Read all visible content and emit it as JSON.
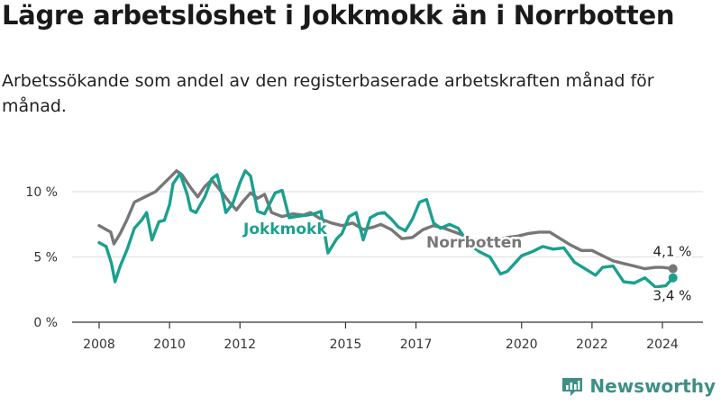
{
  "title": "Lägre arbetslöshet i Jokkmokk än i Norrbotten",
  "subtitle": "Arbetssökande som andel av den registerbaserade arbetskraften månad för månad.",
  "brand": {
    "name": "Newsworthy",
    "icon": "newsworthy-logo-icon",
    "color": "#3e8f86"
  },
  "chart_data": {
    "type": "line",
    "x_unit": "year",
    "xlim": [
      2007.4,
      2024.8
    ],
    "ylim": [
      0,
      12
    ],
    "y_ticks": [
      {
        "value": 0,
        "label": "0 %"
      },
      {
        "value": 5,
        "label": "5 %"
      },
      {
        "value": 10,
        "label": "10 %"
      }
    ],
    "x_ticks": [
      {
        "value": 2008,
        "label": "2008"
      },
      {
        "value": 2010,
        "label": "2010"
      },
      {
        "value": 2012,
        "label": "2012"
      },
      {
        "value": 2015,
        "label": "2015"
      },
      {
        "value": 2017,
        "label": "2017"
      },
      {
        "value": 2020,
        "label": "2020"
      },
      {
        "value": 2022,
        "label": "2022"
      },
      {
        "value": 2024,
        "label": "2024"
      }
    ],
    "grid": true,
    "series": [
      {
        "name": "Norrbotten",
        "label": "Norrbotten",
        "color": "#777777",
        "end_label": "4,1 %",
        "x": [
          2008.0,
          2008.33,
          2008.42,
          2008.6,
          2008.8,
          2009.0,
          2009.3,
          2009.6,
          2009.9,
          2010.2,
          2010.35,
          2010.6,
          2010.8,
          2011.0,
          2011.2,
          2011.5,
          2011.7,
          2011.9,
          2012.1,
          2012.3,
          2012.5,
          2012.7,
          2012.9,
          2013.2,
          2013.5,
          2013.8,
          2014.0,
          2014.3,
          2014.6,
          2014.9,
          2015.2,
          2015.5,
          2015.8,
          2016.0,
          2016.3,
          2016.6,
          2016.9,
          2017.2,
          2017.5,
          2017.8,
          2018.1,
          2018.4,
          2018.7,
          2019.0,
          2019.3,
          2019.6,
          2019.9,
          2020.2,
          2020.5,
          2020.8,
          2021.1,
          2021.4,
          2021.7,
          2022.0,
          2022.3,
          2022.6,
          2022.9,
          2023.2,
          2023.5,
          2023.8,
          2024.0,
          2024.3
        ],
        "values": [
          7.4,
          6.9,
          6.0,
          6.8,
          7.9,
          9.2,
          9.6,
          10.0,
          10.8,
          11.6,
          11.3,
          10.3,
          9.6,
          10.4,
          10.9,
          9.9,
          9.2,
          8.6,
          9.3,
          9.9,
          9.5,
          9.8,
          8.4,
          8.1,
          8.3,
          8.2,
          8.4,
          7.9,
          7.6,
          7.4,
          7.6,
          7.1,
          7.3,
          7.5,
          7.1,
          6.4,
          6.5,
          7.1,
          7.4,
          7.2,
          6.9,
          6.6,
          6.3,
          6.0,
          6.3,
          6.5,
          6.6,
          6.8,
          6.9,
          6.9,
          6.4,
          5.9,
          5.5,
          5.5,
          5.1,
          4.7,
          4.5,
          4.3,
          4.1,
          4.2,
          4.2,
          4.1
        ]
      },
      {
        "name": "Jokkmokk",
        "label": "Jokkmokk",
        "color": "#1aa08f",
        "end_label": "3,4 %",
        "x": [
          2008.0,
          2008.2,
          2008.35,
          2008.45,
          2008.6,
          2008.8,
          2009.0,
          2009.2,
          2009.35,
          2009.5,
          2009.7,
          2009.85,
          2010.0,
          2010.1,
          2010.3,
          2010.5,
          2010.6,
          2010.75,
          2011.0,
          2011.2,
          2011.35,
          2011.5,
          2011.6,
          2011.8,
          2012.0,
          2012.15,
          2012.3,
          2012.5,
          2012.7,
          2013.0,
          2013.2,
          2013.4,
          2013.6,
          2013.9,
          2014.1,
          2014.3,
          2014.5,
          2014.75,
          2014.9,
          2015.1,
          2015.3,
          2015.5,
          2015.7,
          2015.9,
          2016.1,
          2016.3,
          2016.5,
          2016.7,
          2016.9,
          2017.1,
          2017.3,
          2017.5,
          2017.7,
          2017.95,
          2018.2,
          2018.5,
          2018.8,
          2019.1,
          2019.4,
          2019.6,
          2019.8,
          2020.0,
          2020.3,
          2020.6,
          2020.9,
          2021.2,
          2021.5,
          2021.8,
          2022.1,
          2022.3,
          2022.6,
          2022.9,
          2023.2,
          2023.5,
          2023.8,
          2024.1,
          2024.3
        ],
        "values": [
          6.1,
          5.8,
          4.5,
          3.1,
          4.3,
          5.6,
          7.2,
          7.8,
          8.4,
          6.3,
          7.7,
          7.8,
          9.0,
          10.6,
          11.4,
          9.8,
          8.6,
          8.4,
          9.6,
          11.0,
          11.3,
          9.7,
          8.4,
          9.1,
          10.7,
          11.6,
          11.2,
          8.5,
          8.3,
          9.9,
          10.1,
          8.0,
          8.1,
          8.2,
          8.3,
          8.5,
          5.3,
          6.4,
          6.8,
          8.1,
          8.4,
          6.3,
          8.0,
          8.3,
          8.4,
          7.9,
          7.3,
          7.0,
          7.9,
          9.2,
          9.4,
          7.6,
          7.2,
          7.5,
          7.2,
          6.0,
          5.4,
          5.0,
          3.7,
          3.9,
          4.5,
          5.1,
          5.4,
          5.8,
          5.6,
          5.7,
          4.6,
          4.1,
          3.6,
          4.2,
          4.3,
          3.1,
          3.0,
          3.4,
          2.7,
          2.8,
          3.4
        ]
      }
    ]
  }
}
